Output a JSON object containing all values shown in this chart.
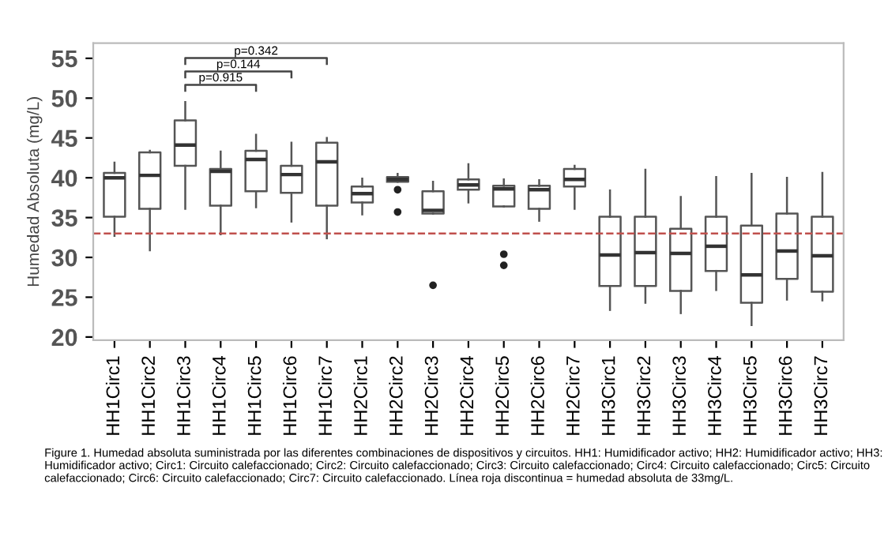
{
  "chart_data": {
    "type": "box",
    "ylabel": "Humedad Absoluta (mg/L)",
    "categories": [
      "HH1Circ1",
      "HH1Circ2",
      "HH1Circ3",
      "HH1Circ4",
      "HH1Circ5",
      "HH1Circ6",
      "HH1Circ7",
      "HH2Circ1",
      "HH2Circ2",
      "HH2Circ3",
      "HH2Circ4",
      "HH2Circ5",
      "HH2Circ6",
      "HH2Circ7",
      "HH3Circ1",
      "HH3Circ2",
      "HH3Circ3",
      "HH3Circ4",
      "HH3Circ5",
      "HH3Circ6",
      "HH3Circ7"
    ],
    "boxes": [
      {
        "low": 32.7,
        "q1": 35.1,
        "median": 40.0,
        "q3": 40.6,
        "high": 41.9
      },
      {
        "low": 30.9,
        "q1": 36.1,
        "median": 40.3,
        "q3": 43.2,
        "high": 43.4
      },
      {
        "low": 36.1,
        "q1": 41.5,
        "median": 44.1,
        "q3": 47.2,
        "high": 49.5
      },
      {
        "low": 32.9,
        "q1": 36.5,
        "median": 40.8,
        "q3": 41.1,
        "high": 43.3
      },
      {
        "low": 36.3,
        "q1": 38.3,
        "median": 42.3,
        "q3": 43.4,
        "high": 45.4
      },
      {
        "low": 34.5,
        "q1": 38.1,
        "median": 40.4,
        "q3": 41.5,
        "high": 44.4
      },
      {
        "low": 32.4,
        "q1": 36.5,
        "median": 42.0,
        "q3": 44.4,
        "high": 45.0
      },
      {
        "low": 35.4,
        "q1": 36.9,
        "median": 38.0,
        "q3": 38.9,
        "high": 39.9
      },
      {
        "low": 39.5,
        "q1": 39.5,
        "median": 39.8,
        "q3": 40.1,
        "high": 40.5,
        "outliers": [
          38.5,
          35.7
        ]
      },
      {
        "low": 35.5,
        "q1": 35.5,
        "median": 35.9,
        "q3": 38.3,
        "high": 39.5,
        "outliers": [
          26.5
        ]
      },
      {
        "low": 36.9,
        "q1": 38.5,
        "median": 39.1,
        "q3": 39.8,
        "high": 41.7
      },
      {
        "low": 36.4,
        "q1": 36.4,
        "median": 38.6,
        "q3": 39.0,
        "high": 39.8,
        "outliers": [
          30.4,
          29.0
        ]
      },
      {
        "low": 34.6,
        "q1": 36.1,
        "median": 38.5,
        "q3": 39.0,
        "high": 39.7
      },
      {
        "low": 36.1,
        "q1": 38.9,
        "median": 39.8,
        "q3": 41.1,
        "high": 41.5
      },
      {
        "low": 23.4,
        "q1": 26.4,
        "median": 30.3,
        "q3": 35.1,
        "high": 38.4
      },
      {
        "low": 24.3,
        "q1": 26.4,
        "median": 30.6,
        "q3": 35.1,
        "high": 41.0
      },
      {
        "low": 23.0,
        "q1": 25.8,
        "median": 30.5,
        "q3": 33.6,
        "high": 37.6
      },
      {
        "low": 25.9,
        "q1": 28.3,
        "median": 31.4,
        "q3": 35.1,
        "high": 40.1
      },
      {
        "low": 21.5,
        "q1": 24.3,
        "median": 27.8,
        "q3": 34.0,
        "high": 40.5
      },
      {
        "low": 24.7,
        "q1": 27.3,
        "median": 30.8,
        "q3": 35.5,
        "high": 40.0
      },
      {
        "low": 24.6,
        "q1": 25.7,
        "median": 30.2,
        "q3": 35.1,
        "high": 40.6
      }
    ],
    "ylim": [
      19.6,
      56.9
    ],
    "yticks": [
      20,
      25,
      30,
      35,
      40,
      45,
      50,
      55
    ],
    "ref_lines": [
      {
        "axis": "y",
        "value": 33,
        "color": "#c0504d",
        "line_style": "dashed"
      }
    ],
    "annotations": [
      "p=0.915",
      "p=0.144",
      "p=0.342",
      "Figure 1. Humedad absoluta suministrada por las diferentes combinaciones de dispositivos y circuitos. HH1: Humidificador activo; HH2: Humidificador activo; HH3: Humidificador activo; Circ1: Circuito calefaccionado; Circ2: Circuito calefaccionado; Circ3: Circuito calefaccionado; Circ4: Circuito calefaccionado; Circ5: Circuito calefaccionado; Circ6: Circuito calefaccionado; Circ7: Circuito calefaccionado. Línea roja discontinua = humedad absoluta de 33mg/L."
    ],
    "grid": false
  }
}
